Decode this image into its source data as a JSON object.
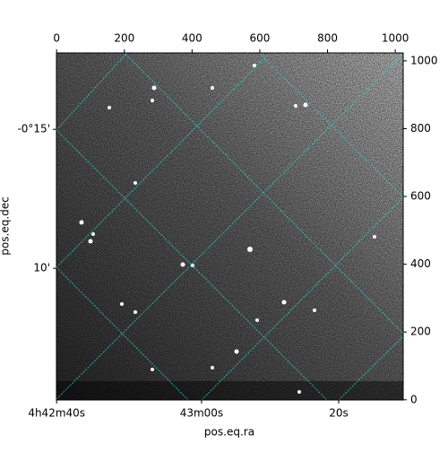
{
  "chart_data": {
    "type": "image",
    "xlabel": "pos.eq.ra",
    "ylabel": "pos.eq.dec",
    "xlim": [
      -0.5,
      1023.5
    ],
    "ylim": [
      -0.5,
      1023.5
    ],
    "xticks": [
      0,
      200,
      400,
      600,
      800,
      1000
    ],
    "yticks": [
      0,
      200,
      400,
      600,
      800,
      1000
    ],
    "world_xticks": [
      {
        "value": 0,
        "label": "4h42m40s"
      },
      {
        "value": 428,
        "label": "43m00s"
      },
      {
        "value": 833,
        "label": "20s"
      }
    ],
    "world_yticks": [
      {
        "value": 798,
        "label": "-0°15'"
      },
      {
        "value": 388,
        "label": "10'"
      }
    ],
    "grid": true
  }
}
